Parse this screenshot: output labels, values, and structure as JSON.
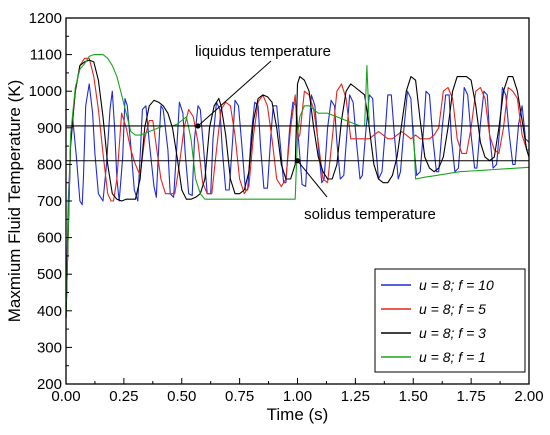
{
  "chart_data": {
    "type": "line",
    "title": "",
    "xlabel": "Time (s)",
    "ylabel": "Maxmium Fluid Temperature (K)",
    "xlim": [
      0.0,
      2.0
    ],
    "ylim": [
      200,
      1200
    ],
    "x_ticks": [
      "0.00",
      "0.25",
      "0.50",
      "0.75",
      "1.00",
      "1.25",
      "1.50",
      "1.75",
      "2.00"
    ],
    "y_ticks": [
      "200",
      "300",
      "400",
      "500",
      "600",
      "700",
      "800",
      "900",
      "1000",
      "1100",
      "1200"
    ],
    "grid": false,
    "legend_position": "bottom-right",
    "reference_lines": [
      {
        "label": "liquidus temperature",
        "y": 905
      },
      {
        "label": "solidus temperature",
        "y": 810
      }
    ],
    "annotations": [
      {
        "text": "liquidus temperature",
        "x": 0.57,
        "y": 905
      },
      {
        "text": "solidus temperature",
        "x": 1.0,
        "y": 810
      }
    ],
    "series": [
      {
        "name": "u = 8; f = 10",
        "color": "#1f2bd6",
        "x": [
          0.0,
          0.01,
          0.02,
          0.03,
          0.045,
          0.06,
          0.07,
          0.075,
          0.085,
          0.1,
          0.115,
          0.125,
          0.14,
          0.16,
          0.175,
          0.19,
          0.2,
          0.21,
          0.22,
          0.23,
          0.245,
          0.255,
          0.265,
          0.28,
          0.295,
          0.31,
          0.32,
          0.33,
          0.345,
          0.36,
          0.38,
          0.39,
          0.4,
          0.41,
          0.42,
          0.44,
          0.45,
          0.465,
          0.48,
          0.49,
          0.505,
          0.515,
          0.53,
          0.545,
          0.555,
          0.57,
          0.58,
          0.595,
          0.61,
          0.625,
          0.635,
          0.65,
          0.665,
          0.675,
          0.69,
          0.705,
          0.72,
          0.73,
          0.745,
          0.76,
          0.775,
          0.785,
          0.8,
          0.815,
          0.83,
          0.84,
          0.855,
          0.87,
          0.885,
          0.895,
          0.91,
          0.925,
          0.94,
          0.95,
          0.965,
          0.98,
          0.995,
          1.005,
          1.02,
          1.035,
          1.05,
          1.06,
          1.075,
          1.09,
          1.105,
          1.115,
          1.13,
          1.145,
          1.16,
          1.17,
          1.185,
          1.2,
          1.215,
          1.225,
          1.24,
          1.255,
          1.27,
          1.28,
          1.295,
          1.31,
          1.325,
          1.335,
          1.35,
          1.365,
          1.38,
          1.39,
          1.405,
          1.42,
          1.435,
          1.445,
          1.46,
          1.475,
          1.49,
          1.5,
          1.515,
          1.53,
          1.545,
          1.555,
          1.57,
          1.585,
          1.6,
          1.61,
          1.625,
          1.64,
          1.655,
          1.665,
          1.68,
          1.695,
          1.71,
          1.72,
          1.735,
          1.75,
          1.765,
          1.775,
          1.79,
          1.805,
          1.82,
          1.83,
          1.845,
          1.86,
          1.875,
          1.885,
          1.9,
          1.915,
          1.93,
          1.94,
          1.955,
          1.97,
          1.985,
          2.0
        ],
        "y": [
          380,
          700,
          850,
          920,
          820,
          700,
          690,
          760,
          960,
          1020,
          940,
          830,
          720,
          700,
          800,
          950,
          1000,
          900,
          760,
          700,
          820,
          980,
          960,
          850,
          730,
          700,
          820,
          950,
          960,
          860,
          740,
          710,
          840,
          960,
          950,
          840,
          720,
          710,
          860,
          970,
          940,
          830,
          720,
          715,
          870,
          960,
          950,
          840,
          720,
          720,
          870,
          970,
          950,
          840,
          730,
          730,
          870,
          975,
          960,
          850,
          730,
          730,
          880,
          970,
          960,
          850,
          735,
          735,
          880,
          960,
          960,
          860,
          750,
          750,
          890,
          970,
          960,
          860,
          745,
          740,
          900,
          990,
          960,
          850,
          750,
          760,
          900,
          975,
          960,
          860,
          760,
          770,
          900,
          990,
          970,
          860,
          760,
          770,
          890,
          990,
          980,
          870,
          760,
          780,
          900,
          990,
          990,
          870,
          760,
          780,
          900,
          1000,
          980,
          870,
          770,
          780,
          900,
          1000,
          990,
          870,
          780,
          780,
          900,
          990,
          990,
          870,
          780,
          790,
          910,
          1010,
          990,
          880,
          790,
          790,
          910,
          1000,
          990,
          880,
          790,
          800,
          910,
          1010,
          990,
          880,
          800,
          800,
          910,
          960,
          870,
          860
        ]
      },
      {
        "name": "u = 8; f = 5",
        "color": "#e8231d",
        "x": [
          0.0,
          0.02,
          0.04,
          0.06,
          0.08,
          0.1,
          0.12,
          0.14,
          0.16,
          0.18,
          0.195,
          0.205,
          0.22,
          0.24,
          0.26,
          0.28,
          0.3,
          0.32,
          0.34,
          0.36,
          0.375,
          0.39,
          0.41,
          0.43,
          0.45,
          0.47,
          0.49,
          0.51,
          0.53,
          0.55,
          0.57,
          0.59,
          0.61,
          0.63,
          0.65,
          0.67,
          0.69,
          0.71,
          0.73,
          0.75,
          0.77,
          0.79,
          0.81,
          0.83,
          0.85,
          0.87,
          0.89,
          0.91,
          0.93,
          0.95,
          0.97,
          0.99,
          1.0,
          1.01,
          1.03,
          1.05,
          1.07,
          1.09,
          1.11,
          1.13,
          1.15,
          1.17,
          1.19,
          1.21,
          1.23,
          1.25,
          1.27,
          1.29,
          1.31,
          1.33,
          1.35,
          1.37,
          1.39,
          1.41,
          1.43,
          1.45,
          1.47,
          1.49,
          1.51,
          1.53,
          1.55,
          1.57,
          1.59,
          1.61,
          1.63,
          1.65,
          1.67,
          1.69,
          1.71,
          1.73,
          1.75,
          1.77,
          1.79,
          1.81,
          1.83,
          1.85,
          1.87,
          1.89,
          1.91,
          1.93,
          1.95,
          1.97,
          1.99,
          2.0
        ],
        "y": [
          380,
          860,
          1000,
          1070,
          1090,
          1090,
          1040,
          950,
          830,
          720,
          700,
          700,
          760,
          940,
          900,
          840,
          800,
          770,
          870,
          920,
          920,
          850,
          760,
          720,
          720,
          720,
          800,
          900,
          950,
          930,
          860,
          750,
          720,
          720,
          840,
          950,
          970,
          960,
          880,
          760,
          720,
          740,
          880,
          970,
          990,
          960,
          870,
          760,
          740,
          760,
          900,
          990,
          870,
          880,
          1000,
          990,
          950,
          860,
          760,
          750,
          870,
          1000,
          1020,
          980,
          870,
          870,
          870,
          870,
          870,
          880,
          890,
          880,
          870,
          870,
          880,
          890,
          880,
          870,
          880,
          870,
          870,
          870,
          880,
          900,
          1000,
          1010,
          980,
          870,
          830,
          830,
          900,
          1000,
          1010,
          980,
          880,
          840,
          830,
          900,
          1010,
          1000,
          980,
          880,
          840,
          840
        ]
      },
      {
        "name": "u = 8; f = 3",
        "color": "#000000",
        "x": [
          0.0,
          0.02,
          0.04,
          0.06,
          0.08,
          0.1,
          0.12,
          0.14,
          0.16,
          0.18,
          0.2,
          0.22,
          0.24,
          0.26,
          0.28,
          0.3,
          0.32,
          0.34,
          0.36,
          0.38,
          0.4,
          0.42,
          0.44,
          0.46,
          0.48,
          0.5,
          0.52,
          0.54,
          0.56,
          0.58,
          0.6,
          0.62,
          0.64,
          0.66,
          0.67,
          0.69,
          0.71,
          0.73,
          0.75,
          0.77,
          0.79,
          0.81,
          0.83,
          0.85,
          0.87,
          0.89,
          0.91,
          0.93,
          0.95,
          0.97,
          0.99,
          1.0,
          1.01,
          1.03,
          1.05,
          1.07,
          1.09,
          1.11,
          1.13,
          1.15,
          1.17,
          1.19,
          1.21,
          1.23,
          1.25,
          1.27,
          1.29,
          1.31,
          1.33,
          1.35,
          1.37,
          1.39,
          1.41,
          1.43,
          1.45,
          1.47,
          1.49,
          1.51,
          1.53,
          1.55,
          1.57,
          1.59,
          1.61,
          1.63,
          1.65,
          1.67,
          1.69,
          1.71,
          1.73,
          1.75,
          1.77,
          1.79,
          1.81,
          1.83,
          1.85,
          1.87,
          1.89,
          1.91,
          1.93,
          1.95,
          1.97,
          1.99,
          2.0
        ],
        "y": [
          380,
          860,
          1000,
          1070,
          1080,
          1085,
          1080,
          1030,
          930,
          800,
          720,
          705,
          700,
          705,
          705,
          705,
          760,
          900,
          960,
          975,
          970,
          960,
          940,
          900,
          820,
          730,
          705,
          705,
          710,
          720,
          760,
          900,
          960,
          980,
          960,
          880,
          760,
          720,
          720,
          730,
          780,
          920,
          980,
          990,
          985,
          970,
          900,
          800,
          760,
          760,
          800,
          1020,
          1040,
          1030,
          1000,
          900,
          820,
          780,
          760,
          760,
          800,
          920,
          1000,
          1020,
          1010,
          1000,
          990,
          900,
          800,
          760,
          750,
          750,
          770,
          820,
          910,
          1000,
          1040,
          1030,
          920,
          820,
          790,
          780,
          790,
          820,
          900,
          1000,
          1040,
          1040,
          1040,
          1030,
          960,
          860,
          820,
          810,
          820,
          900,
          1000,
          1040,
          1040,
          1000,
          920,
          840,
          820
        ]
      },
      {
        "name": "u = 8; f = 1",
        "color": "#18a51e",
        "x": [
          0.0,
          0.02,
          0.04,
          0.06,
          0.08,
          0.1,
          0.12,
          0.14,
          0.16,
          0.18,
          0.2,
          0.22,
          0.24,
          0.26,
          0.28,
          0.3,
          0.32,
          0.34,
          0.36,
          0.38,
          0.4,
          0.42,
          0.44,
          0.46,
          0.48,
          0.5,
          0.52,
          0.54,
          0.56,
          0.58,
          0.6,
          0.62,
          0.64,
          0.66,
          0.68,
          0.7,
          0.75,
          0.8,
          0.85,
          0.9,
          0.95,
          0.99,
          1.0,
          1.01,
          1.03,
          1.05,
          1.07,
          1.09,
          1.11,
          1.13,
          1.15,
          1.17,
          1.19,
          1.21,
          1.23,
          1.25,
          1.27,
          1.29,
          1.3,
          1.31,
          1.33,
          1.35,
          1.37,
          1.39,
          1.41,
          1.43,
          1.45,
          1.47,
          1.49,
          1.5,
          1.51,
          1.55,
          1.6,
          1.65,
          1.7,
          1.75,
          1.8,
          1.85,
          1.9,
          1.95,
          2.0
        ],
        "y": [
          380,
          880,
          1010,
          1060,
          1075,
          1095,
          1100,
          1100,
          1100,
          1090,
          1070,
          1040,
          990,
          940,
          890,
          880,
          880,
          885,
          890,
          895,
          900,
          905,
          905,
          905,
          910,
          920,
          930,
          870,
          760,
          720,
          705,
          705,
          705,
          705,
          705,
          705,
          705,
          705,
          705,
          705,
          705,
          705,
          880,
          930,
          960,
          960,
          950,
          940,
          940,
          940,
          935,
          930,
          925,
          920,
          915,
          910,
          905,
          905,
          1070,
          905,
          905,
          905,
          905,
          905,
          905,
          905,
          905,
          905,
          905,
          905,
          760,
          765,
          770,
          775,
          780,
          782,
          784,
          786,
          788,
          790,
          792
        ]
      }
    ]
  }
}
